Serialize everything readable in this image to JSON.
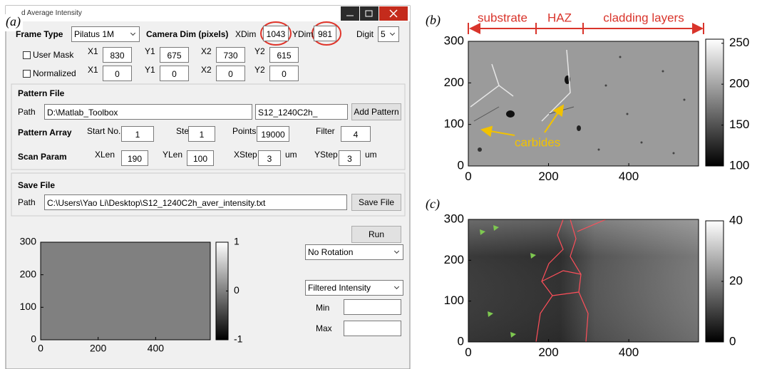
{
  "panel_a": {
    "label": "(a)",
    "window_title": "d Average Intensity",
    "frame_type_label": "Frame Type",
    "frame_type": "Pilatus 1M",
    "camera_dim_label": "Camera Dim (pixels)",
    "xdim_label": "XDim",
    "xdim": 1043,
    "ydim_label": "YDim",
    "ydim": 981,
    "digit_label": "Digit",
    "digit": 5,
    "user_mask": {
      "label": "User Mask",
      "fields": [
        {
          "label": "X1",
          "value": 830
        },
        {
          "label": "Y1",
          "value": 675
        },
        {
          "label": "X2",
          "value": 730
        },
        {
          "label": "Y2",
          "value": 615
        }
      ]
    },
    "normalized": {
      "label": "Normalized",
      "fields": [
        {
          "label": "X1",
          "value": 0
        },
        {
          "label": "Y1",
          "value": 0
        },
        {
          "label": "X2",
          "value": 0
        },
        {
          "label": "Y2",
          "value": 0
        }
      ]
    },
    "pattern_file": {
      "title": "Pattern File",
      "path_label": "Path",
      "path": "D:\\Matlab_Toolbox",
      "prefix": "S12_1240C2h_",
      "button": "Add Pattern"
    },
    "pattern_array": {
      "label": "Pattern Array",
      "fields": [
        {
          "label": "Start No.",
          "value": 1
        },
        {
          "label": "Step",
          "value": 1
        },
        {
          "label": "Points",
          "value": 19000
        },
        {
          "label": "Filter",
          "value": 4
        }
      ]
    },
    "scan_param": {
      "label": "Scan Param",
      "fields": [
        {
          "label": "XLen",
          "value": 190
        },
        {
          "label": "YLen",
          "value": 100
        },
        {
          "label": "XStep",
          "value": 3,
          "unit": "um"
        },
        {
          "label": "YStep",
          "value": 3,
          "unit": "um"
        }
      ]
    },
    "save_file": {
      "title": "Save File",
      "path_label": "Path",
      "path": "C:\\Users\\Yao Li\\Desktop\\S12_1240C2h_aver_intensity.txt",
      "button": "Save File"
    },
    "run_button": "Run",
    "rotation": "No Rotation",
    "intensity_mode": "Filtered Intensity",
    "min_label": "Min",
    "max_label": "Max",
    "plot": {
      "xlim": [
        0,
        590
      ],
      "xticks": [
        0,
        200,
        400
      ],
      "ylim": [
        0,
        300
      ],
      "yticks": [
        0,
        100,
        200,
        300
      ],
      "colorbar": {
        "lim": [
          -1,
          1
        ],
        "ticks": [
          -1,
          0,
          1
        ]
      }
    }
  },
  "panel_b": {
    "label": "(b)",
    "regions": [
      "substrate",
      "HAZ",
      "cladding layers"
    ],
    "annotation": "carbides",
    "plot": {
      "xlim": [
        0,
        574
      ],
      "xticks": [
        0,
        200,
        400
      ],
      "ylim": [
        0,
        300
      ],
      "yticks": [
        0,
        100,
        200,
        300
      ],
      "colorbar": {
        "lim": [
          100,
          255
        ],
        "ticks": [
          100,
          150,
          200,
          250
        ]
      }
    }
  },
  "panel_c": {
    "label": "(c)",
    "plot": {
      "xlim": [
        0,
        574
      ],
      "xticks": [
        0,
        200,
        400
      ],
      "ylim": [
        0,
        300
      ],
      "yticks": [
        0,
        100,
        200,
        300
      ],
      "colorbar": {
        "lim": [
          0,
          40
        ],
        "ticks": [
          0,
          20,
          40
        ]
      }
    }
  }
}
